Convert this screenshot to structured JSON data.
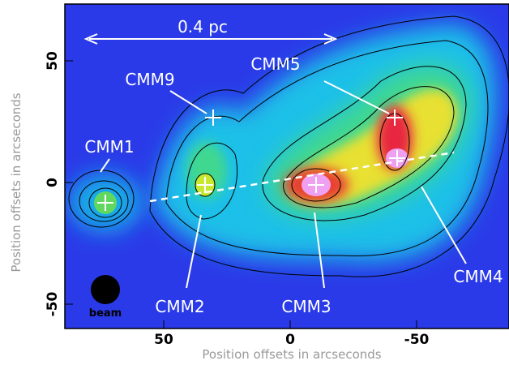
{
  "figure": {
    "axes": {
      "x_label": "Position offsets in arcseconds",
      "y_label": "Position offsets in arcseconds",
      "x_ticks": [
        50,
        0,
        -50
      ],
      "y_ticks": [
        50,
        0,
        -50
      ]
    },
    "scale_bar": "0.4 pc",
    "beam": "beam",
    "sources": [
      "CMM1",
      "CMM9",
      "CMM5",
      "CMM2",
      "CMM3",
      "CMM4"
    ]
  }
}
